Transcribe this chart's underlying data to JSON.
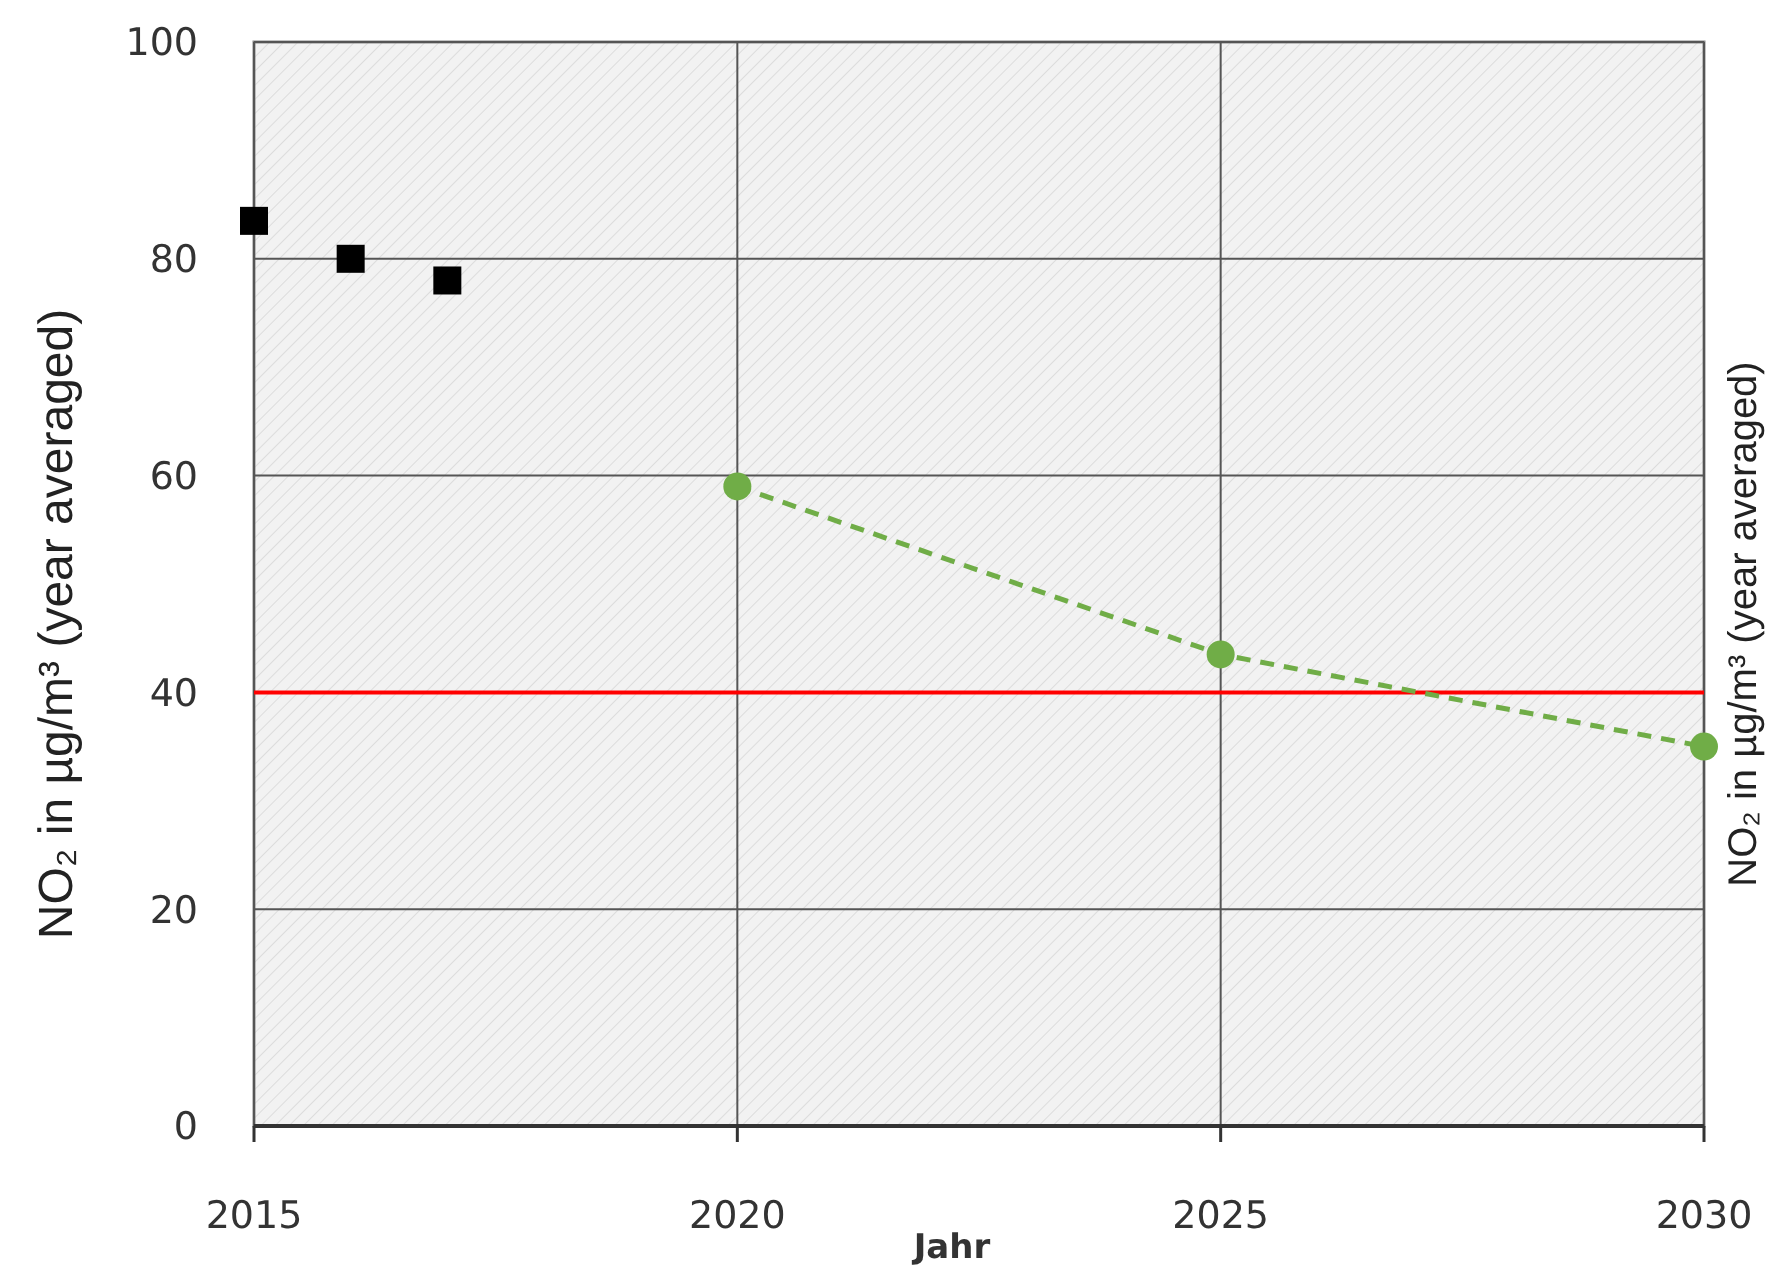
{
  "chart_data": {
    "type": "line",
    "xlabel": "Jahr",
    "ylabel": "NO₂ in µg/m³ (year averaged)",
    "y2label": "NO₂ in µg/m³ (year averaged)",
    "xlim": [
      2015,
      2030
    ],
    "xticks": [
      2015,
      2020,
      2025,
      2030
    ],
    "ylim": [
      0,
      100
    ],
    "yticks": [
      0,
      20,
      40,
      60,
      80,
      100
    ],
    "grid": true,
    "series": [
      {
        "type": "scatter",
        "color": "#000000",
        "marker": "square",
        "x": [
          2015,
          2016,
          2017
        ],
        "values": [
          83.5,
          80,
          78
        ]
      },
      {
        "color": "#70ad47",
        "marker": "circle",
        "line_style": "dashed",
        "x": [
          2020,
          2025,
          2030
        ],
        "values": [
          59,
          43.5,
          35
        ]
      }
    ],
    "ref_lines": [
      {
        "axis": "y",
        "value": 40,
        "color": "#ff0000"
      }
    ]
  }
}
